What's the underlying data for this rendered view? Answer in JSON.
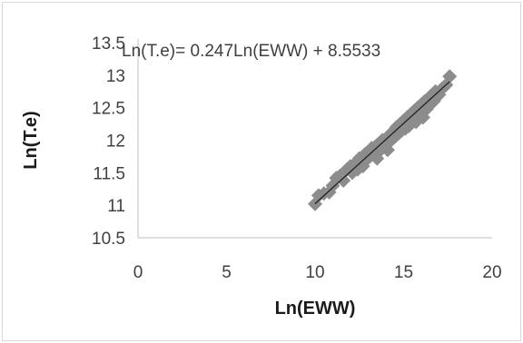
{
  "chart_data": {
    "type": "scatter",
    "xlabel": "Ln(EWW)",
    "ylabel": "Ln(T.e)",
    "xlim": [
      0,
      20
    ],
    "ylim": [
      10.5,
      13.5
    ],
    "xticks": [
      "0",
      "5",
      "10",
      "15",
      "20"
    ],
    "yticks": [
      "10.5",
      "11",
      "11.5",
      "12",
      "12.5",
      "13",
      "13.5"
    ],
    "grid": false,
    "legend": "none",
    "marker_color": "#8c8c8c",
    "trendline_color": "#1a1a1a",
    "trendline": {
      "equation": "Ln(T.e)= 0.247Ln(EWW) + 8.5533",
      "slope": 0.247,
      "intercept": 8.5533,
      "x_range": [
        10,
        17.6
      ]
    },
    "series": [
      {
        "x": [
          10.0,
          10.2,
          10.5,
          10.8,
          11.0,
          11.2,
          11.4,
          11.6,
          11.8,
          12.0,
          12.1,
          12.3,
          12.4,
          12.5,
          12.7,
          12.8,
          12.9,
          13.0,
          13.1,
          13.2,
          13.3,
          13.4,
          13.5,
          13.6,
          13.7,
          13.8,
          13.9,
          14.0,
          14.1,
          14.2,
          14.3,
          14.4,
          14.5,
          14.6,
          14.7,
          14.8,
          14.9,
          15.0,
          15.1,
          15.2,
          15.3,
          15.4,
          15.5,
          15.6,
          15.7,
          15.8,
          15.9,
          16.0,
          16.1,
          16.2,
          16.3,
          16.4,
          16.5,
          16.6,
          16.7,
          16.8,
          17.0,
          17.2,
          17.4,
          17.6
        ],
        "y": [
          11.02,
          11.15,
          11.18,
          11.2,
          11.3,
          11.42,
          11.45,
          11.38,
          11.55,
          11.6,
          11.5,
          11.65,
          11.55,
          11.72,
          11.6,
          11.78,
          11.7,
          11.82,
          11.75,
          11.88,
          11.8,
          11.9,
          11.72,
          11.95,
          11.85,
          12.0,
          11.9,
          12.02,
          11.85,
          12.08,
          12.0,
          12.12,
          12.05,
          12.2,
          12.1,
          12.25,
          12.15,
          12.3,
          12.18,
          12.35,
          12.22,
          12.4,
          12.3,
          12.45,
          12.28,
          12.5,
          12.4,
          12.55,
          12.35,
          12.6,
          12.48,
          12.62,
          12.55,
          12.7,
          12.6,
          12.75,
          12.7,
          12.8,
          12.85,
          12.98
        ]
      }
    ]
  }
}
